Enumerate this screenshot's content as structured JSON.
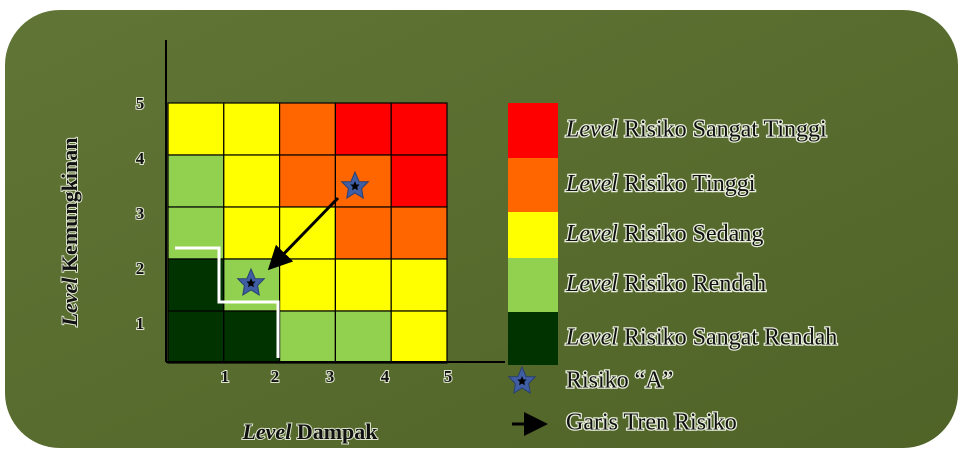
{
  "y_axis": {
    "label_prefix": "Level",
    "label_rest": "Kemungkinan",
    "ticks": [
      "1",
      "2",
      "3",
      "4",
      "5"
    ]
  },
  "x_axis": {
    "label_prefix": "Level",
    "label_rest": "Dampak",
    "ticks": [
      "1",
      "2",
      "3",
      "4",
      "5"
    ]
  },
  "legend": [
    {
      "prefix": "Level",
      "text": "Risiko Sangat Tinggi",
      "color": "#ff0000"
    },
    {
      "prefix": "Level",
      "text": "Risiko Tinggi",
      "color": "#ff6600"
    },
    {
      "prefix": "Level",
      "text": "Risiko Sedang",
      "color": "#ffff00"
    },
    {
      "prefix": "Level",
      "text": "Risiko Rendah",
      "color": "#92d050"
    },
    {
      "prefix": "Level",
      "text": "Risiko Sangat Rendah",
      "color": "#003300"
    }
  ],
  "markers": [
    {
      "label": "Risiko “A”"
    },
    {
      "label": "Garis Tren Risiko"
    }
  ]
}
